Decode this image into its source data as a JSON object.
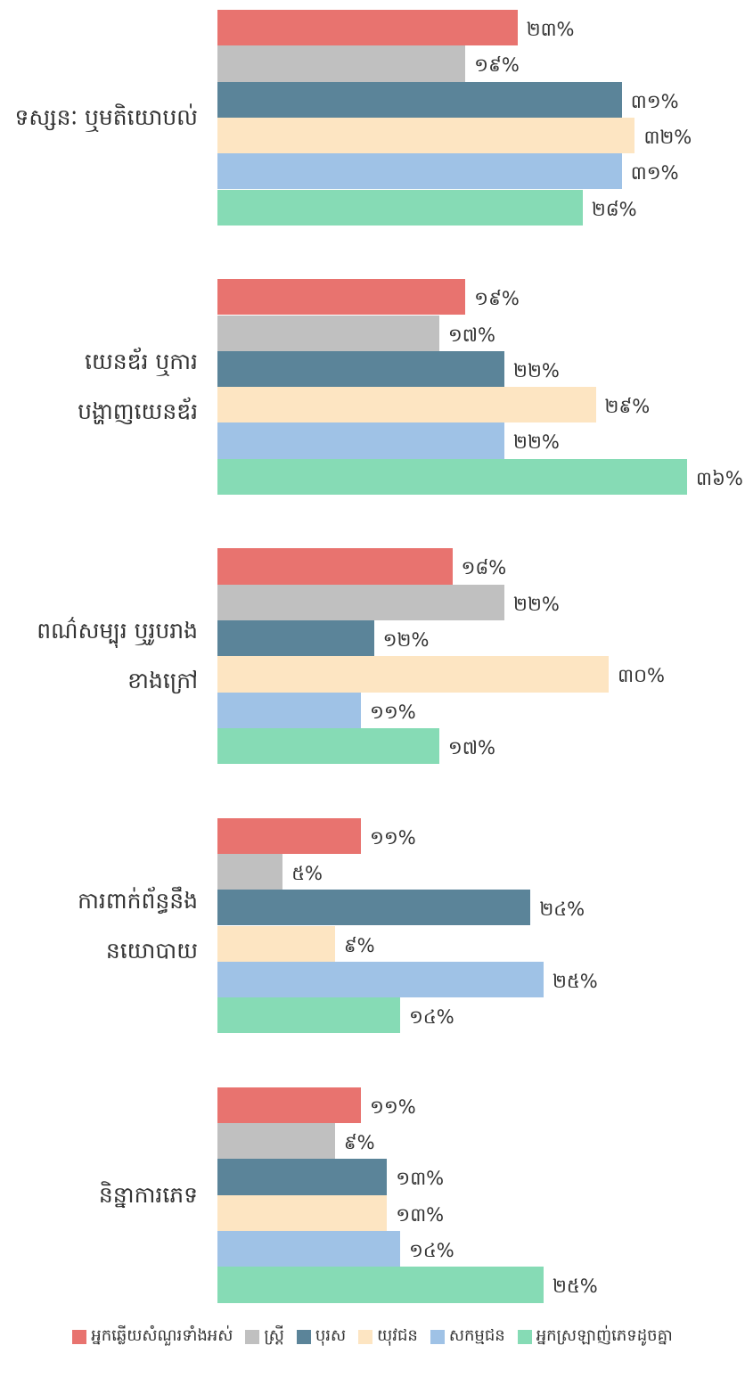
{
  "chart_data": {
    "type": "bar",
    "orientation": "horizontal",
    "categories": [
      "ទស្សនៈ ឬមតិយោបល់",
      "យេនឌ័រ ឬការបង្ហាញយេនឌ័រ",
      "ពណ៌សម្បុរ ឬរូបរាងខាងក្រៅ",
      "ការពាក់ព័ន្ធនឹងនយោបាយ",
      "និន្នាការភេទ"
    ],
    "series": [
      {
        "name": "អ្នកឆ្លើយសំណួរទាំងអស់",
        "color": "#e8736f",
        "values": [
          23,
          19,
          18,
          11,
          11
        ],
        "value_labels": [
          "២៣%",
          "១៩%",
          "១៨%",
          "១១%",
          "១១%"
        ]
      },
      {
        "name": "ស្ត្រី",
        "color": "#c0c0c0",
        "values": [
          19,
          17,
          22,
          5,
          9
        ],
        "value_labels": [
          "១៩%",
          "១៧%",
          "២២%",
          "៥%",
          "៩%"
        ]
      },
      {
        "name": "បុរស",
        "color": "#5b8499",
        "values": [
          31,
          22,
          12,
          24,
          13
        ],
        "value_labels": [
          "៣១%",
          "២២%",
          "១២%",
          "២៤%",
          "១៣%"
        ]
      },
      {
        "name": "យុវជន",
        "color": "#fde5c2",
        "values": [
          32,
          29,
          30,
          9,
          13
        ],
        "value_labels": [
          "៣២%",
          "២៩%",
          "៣០%",
          "៩%",
          "១៣%"
        ]
      },
      {
        "name": "សកម្មជន",
        "color": "#9fc2e6",
        "values": [
          31,
          22,
          11,
          25,
          14
        ],
        "value_labels": [
          "៣១%",
          "២២%",
          "១១%",
          "២៥%",
          "១៤%"
        ]
      },
      {
        "name": "អ្នកស្រឡាញ់ភេទដូចគ្នា",
        "color": "#86dbb5",
        "values": [
          28,
          36,
          17,
          14,
          25
        ],
        "value_labels": [
          "២៨%",
          "៣៦%",
          "១៧%",
          "១៤%",
          "២៥%"
        ]
      }
    ]
  }
}
